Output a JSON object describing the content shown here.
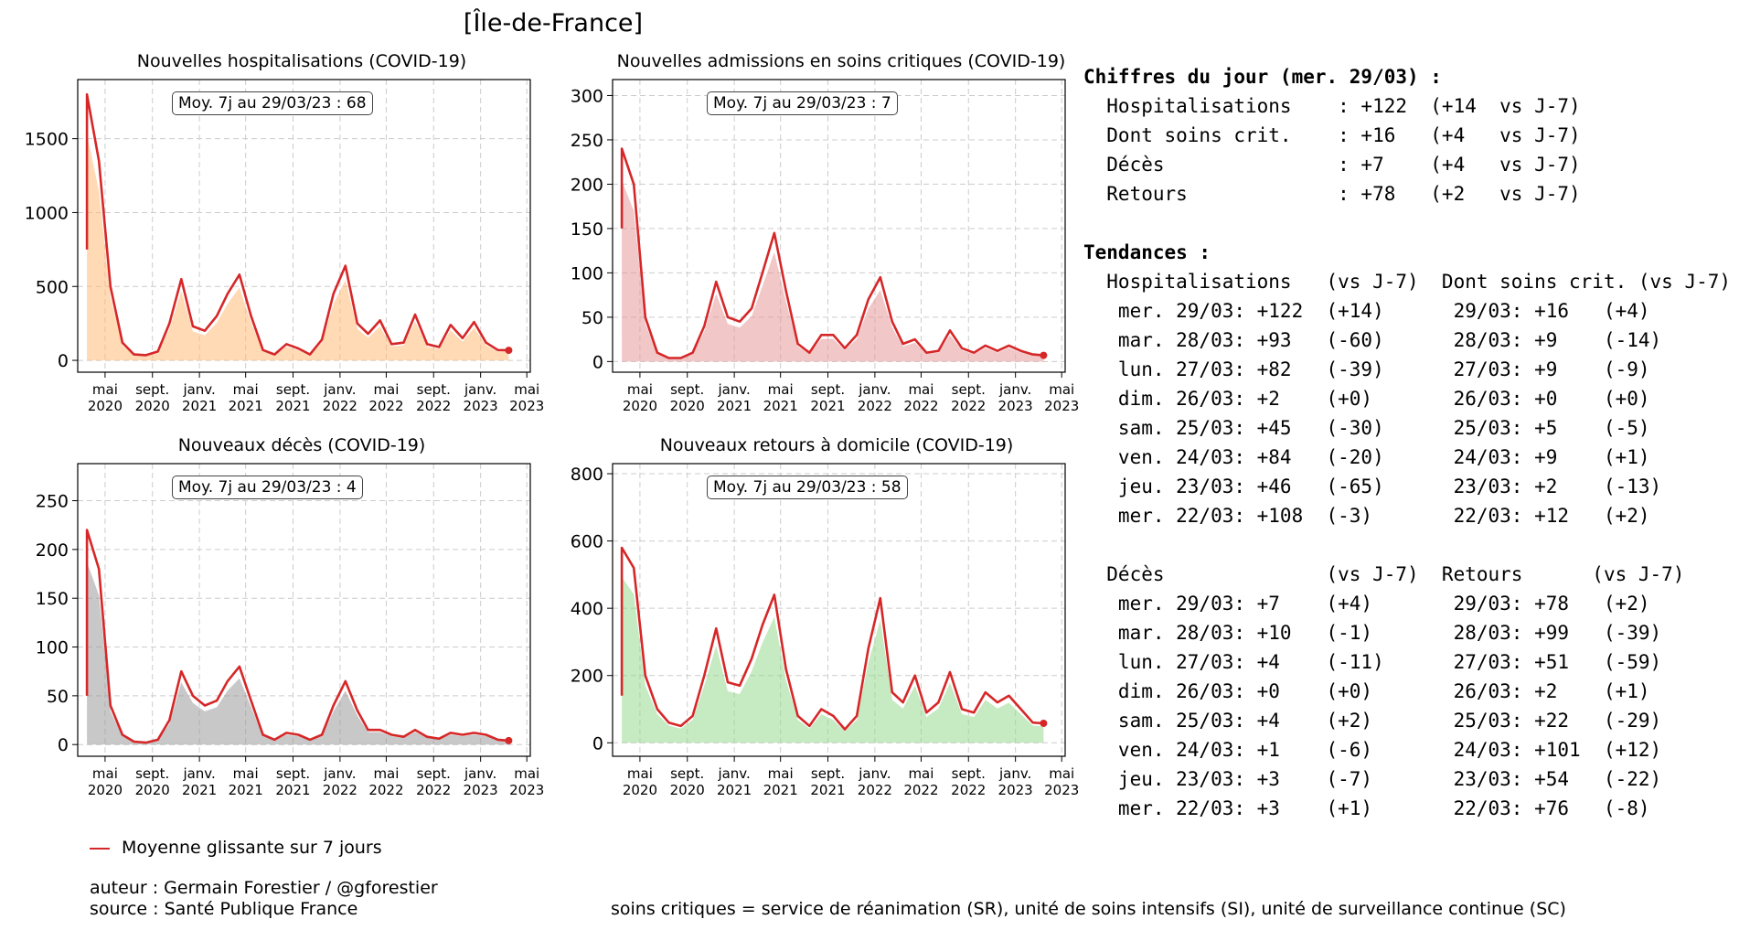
{
  "title": "[Île-de-France]",
  "chart_data": [
    {
      "type": "bar",
      "title": "Nouvelles hospitalisations (COVID-19)",
      "avg_label": "Moy. 7j au 29/03/23 : 68",
      "color_bar": "#ffbb78",
      "color_line": "#d62728",
      "ylim": [
        -80,
        1900
      ],
      "yticks": [
        0,
        500,
        1000,
        1500
      ],
      "x_months": [
        [
          "2020-03",
          750
        ],
        [
          "2020-03-15",
          1800
        ],
        [
          "2020-04",
          1350
        ],
        [
          "2020-05",
          500
        ],
        [
          "2020-06",
          120
        ],
        [
          "2020-07",
          40
        ],
        [
          "2020-08",
          35
        ],
        [
          "2020-09",
          60
        ],
        [
          "2020-10",
          250
        ],
        [
          "2020-11",
          550
        ],
        [
          "2020-12",
          230
        ],
        [
          "2021-01",
          200
        ],
        [
          "2021-02",
          300
        ],
        [
          "2021-03",
          450
        ],
        [
          "2021-04",
          580
        ],
        [
          "2021-05",
          300
        ],
        [
          "2021-06",
          70
        ],
        [
          "2021-07",
          40
        ],
        [
          "2021-08",
          110
        ],
        [
          "2021-09",
          80
        ],
        [
          "2021-10",
          40
        ],
        [
          "2021-11",
          140
        ],
        [
          "2021-12",
          450
        ],
        [
          "2022-01",
          640
        ],
        [
          "2022-02",
          250
        ],
        [
          "2022-03",
          180
        ],
        [
          "2022-04",
          270
        ],
        [
          "2022-05",
          110
        ],
        [
          "2022-06",
          120
        ],
        [
          "2022-07",
          310
        ],
        [
          "2022-08",
          110
        ],
        [
          "2022-09",
          90
        ],
        [
          "2022-10",
          240
        ],
        [
          "2022-11",
          150
        ],
        [
          "2022-12",
          260
        ],
        [
          "2023-01",
          120
        ],
        [
          "2023-02",
          70
        ],
        [
          "2023-03",
          68
        ]
      ]
    },
    {
      "type": "bar",
      "title": "Nouvelles admissions en soins critiques (COVID-19)",
      "avg_label": "Moy. 7j au 29/03/23 : 7",
      "color_bar": "#e8999b",
      "color_line": "#d62728",
      "ylim": [
        -12,
        318
      ],
      "yticks": [
        0,
        50,
        100,
        150,
        200,
        250,
        300
      ],
      "x_months": [
        [
          "2020-03",
          150
        ],
        [
          "2020-03-15",
          240
        ],
        [
          "2020-04",
          200
        ],
        [
          "2020-05",
          50
        ],
        [
          "2020-06",
          10
        ],
        [
          "2020-07",
          4
        ],
        [
          "2020-08",
          4
        ],
        [
          "2020-09",
          10
        ],
        [
          "2020-10",
          40
        ],
        [
          "2020-11",
          90
        ],
        [
          "2020-12",
          50
        ],
        [
          "2021-01",
          45
        ],
        [
          "2021-02",
          60
        ],
        [
          "2021-03",
          100
        ],
        [
          "2021-04",
          145
        ],
        [
          "2021-05",
          80
        ],
        [
          "2021-06",
          20
        ],
        [
          "2021-07",
          10
        ],
        [
          "2021-08",
          30
        ],
        [
          "2021-09",
          30
        ],
        [
          "2021-10",
          15
        ],
        [
          "2021-11",
          30
        ],
        [
          "2021-12",
          70
        ],
        [
          "2022-01",
          95
        ],
        [
          "2022-02",
          45
        ],
        [
          "2022-03",
          20
        ],
        [
          "2022-04",
          25
        ],
        [
          "2022-05",
          10
        ],
        [
          "2022-06",
          12
        ],
        [
          "2022-07",
          35
        ],
        [
          "2022-08",
          15
        ],
        [
          "2022-09",
          10
        ],
        [
          "2022-10",
          18
        ],
        [
          "2022-11",
          12
        ],
        [
          "2022-12",
          18
        ],
        [
          "2023-01",
          12
        ],
        [
          "2023-02",
          8
        ],
        [
          "2023-03",
          7
        ]
      ]
    },
    {
      "type": "bar",
      "title": "Nouveaux décès (COVID-19)",
      "avg_label": "Moy. 7j au 29/03/23 : 4",
      "color_bar": "#9a9a9a",
      "color_line": "#d62728",
      "ylim": [
        -12,
        288
      ],
      "yticks": [
        0,
        50,
        100,
        150,
        200,
        250
      ],
      "x_months": [
        [
          "2020-03",
          50
        ],
        [
          "2020-03-15",
          220
        ],
        [
          "2020-04",
          180
        ],
        [
          "2020-05",
          40
        ],
        [
          "2020-06",
          10
        ],
        [
          "2020-07",
          3
        ],
        [
          "2020-08",
          2
        ],
        [
          "2020-09",
          5
        ],
        [
          "2020-10",
          25
        ],
        [
          "2020-11",
          75
        ],
        [
          "2020-12",
          50
        ],
        [
          "2021-01",
          40
        ],
        [
          "2021-02",
          45
        ],
        [
          "2021-03",
          65
        ],
        [
          "2021-04",
          80
        ],
        [
          "2021-05",
          45
        ],
        [
          "2021-06",
          10
        ],
        [
          "2021-07",
          5
        ],
        [
          "2021-08",
          12
        ],
        [
          "2021-09",
          10
        ],
        [
          "2021-10",
          5
        ],
        [
          "2021-11",
          10
        ],
        [
          "2021-12",
          40
        ],
        [
          "2022-01",
          65
        ],
        [
          "2022-02",
          35
        ],
        [
          "2022-03",
          15
        ],
        [
          "2022-04",
          15
        ],
        [
          "2022-05",
          10
        ],
        [
          "2022-06",
          8
        ],
        [
          "2022-07",
          15
        ],
        [
          "2022-08",
          8
        ],
        [
          "2022-09",
          6
        ],
        [
          "2022-10",
          12
        ],
        [
          "2022-11",
          10
        ],
        [
          "2022-12",
          12
        ],
        [
          "2023-01",
          10
        ],
        [
          "2023-02",
          5
        ],
        [
          "2023-03",
          4
        ]
      ]
    },
    {
      "type": "bar",
      "title": "Nouveaux retours à domicile (COVID-19)",
      "avg_label": "Moy. 7j au 29/03/23 : 58",
      "color_bar": "#98d98e",
      "color_line": "#d62728",
      "ylim": [
        -40,
        830
      ],
      "yticks": [
        0,
        200,
        400,
        600,
        800
      ],
      "x_months": [
        [
          "2020-03",
          140
        ],
        [
          "2020-03-15",
          580
        ],
        [
          "2020-04",
          520
        ],
        [
          "2020-05",
          200
        ],
        [
          "2020-06",
          100
        ],
        [
          "2020-07",
          60
        ],
        [
          "2020-08",
          50
        ],
        [
          "2020-09",
          80
        ],
        [
          "2020-10",
          200
        ],
        [
          "2020-11",
          340
        ],
        [
          "2020-12",
          180
        ],
        [
          "2021-01",
          170
        ],
        [
          "2021-02",
          250
        ],
        [
          "2021-03",
          350
        ],
        [
          "2021-04",
          440
        ],
        [
          "2021-05",
          220
        ],
        [
          "2021-06",
          80
        ],
        [
          "2021-07",
          50
        ],
        [
          "2021-08",
          100
        ],
        [
          "2021-09",
          80
        ],
        [
          "2021-10",
          40
        ],
        [
          "2021-11",
          80
        ],
        [
          "2021-12",
          280
        ],
        [
          "2022-01",
          430
        ],
        [
          "2022-02",
          150
        ],
        [
          "2022-03",
          120
        ],
        [
          "2022-04",
          200
        ],
        [
          "2022-05",
          90
        ],
        [
          "2022-06",
          120
        ],
        [
          "2022-07",
          210
        ],
        [
          "2022-08",
          100
        ],
        [
          "2022-09",
          90
        ],
        [
          "2022-10",
          150
        ],
        [
          "2022-11",
          120
        ],
        [
          "2022-12",
          140
        ],
        [
          "2023-01",
          100
        ],
        [
          "2023-02",
          60
        ],
        [
          "2023-03",
          58
        ]
      ]
    }
  ],
  "x_tick_labels": [
    [
      "mai",
      "2020"
    ],
    [
      "sept.",
      "2020"
    ],
    [
      "janv.",
      "2021"
    ],
    [
      "mai",
      "2021"
    ],
    [
      "sept.",
      "2021"
    ],
    [
      "janv.",
      "2022"
    ],
    [
      "mai",
      "2022"
    ],
    [
      "sept.",
      "2022"
    ],
    [
      "janv.",
      "2023"
    ],
    [
      "mai",
      "2023"
    ]
  ],
  "stats_lines": [
    {
      "text": "Chiffres du jour (mer. 29/03) :",
      "bold": true
    },
    {
      "text": "  Hospitalisations    : +122  (+14  vs J-7)"
    },
    {
      "text": "  Dont soins crit.    : +16   (+4   vs J-7)"
    },
    {
      "text": "  Décès               : +7    (+4   vs J-7)"
    },
    {
      "text": "  Retours             : +78   (+2   vs J-7)"
    },
    {
      "text": ""
    },
    {
      "text": "Tendances :",
      "bold": true
    },
    {
      "text": "  Hospitalisations   (vs J-7)  Dont soins crit. (vs J-7)"
    },
    {
      "text": "   mer. 29/03: +122  (+14)      29/03: +16   (+4)"
    },
    {
      "text": "   mar. 28/03: +93   (-60)      28/03: +9    (-14)"
    },
    {
      "text": "   lun. 27/03: +82   (-39)      27/03: +9    (-9)"
    },
    {
      "text": "   dim. 26/03: +2    (+0)       26/03: +0    (+0)"
    },
    {
      "text": "   sam. 25/03: +45   (-30)      25/03: +5    (-5)"
    },
    {
      "text": "   ven. 24/03: +84   (-20)      24/03: +9    (+1)"
    },
    {
      "text": "   jeu. 23/03: +46   (-65)      23/03: +2    (-13)"
    },
    {
      "text": "   mer. 22/03: +108  (-3)       22/03: +12   (+2)"
    },
    {
      "text": ""
    },
    {
      "text": "  Décès              (vs J-7)  Retours      (vs J-7)"
    },
    {
      "text": "   mer. 29/03: +7    (+4)       29/03: +78   (+2)"
    },
    {
      "text": "   mar. 28/03: +10   (-1)       28/03: +99   (-39)"
    },
    {
      "text": "   lun. 27/03: +4    (-11)      27/03: +51   (-59)"
    },
    {
      "text": "   dim. 26/03: +0    (+0)       26/03: +2    (+1)"
    },
    {
      "text": "   sam. 25/03: +4    (+2)       25/03: +22   (-29)"
    },
    {
      "text": "   ven. 24/03: +1    (-6)       24/03: +101  (+12)"
    },
    {
      "text": "   jeu. 23/03: +3    (-7)       23/03: +54   (-22)"
    },
    {
      "text": "   mer. 22/03: +3    (+1)       22/03: +76   (-8)"
    }
  ],
  "legend_label": "Moyenne glissante sur 7 jours",
  "author": "auteur : Germain Forestier / @gforestier",
  "source": "source : Santé Publique France",
  "footnote": "soins critiques = service de réanimation (SR), unité de soins intensifs (SI), unité de surveillance continue (SC)"
}
